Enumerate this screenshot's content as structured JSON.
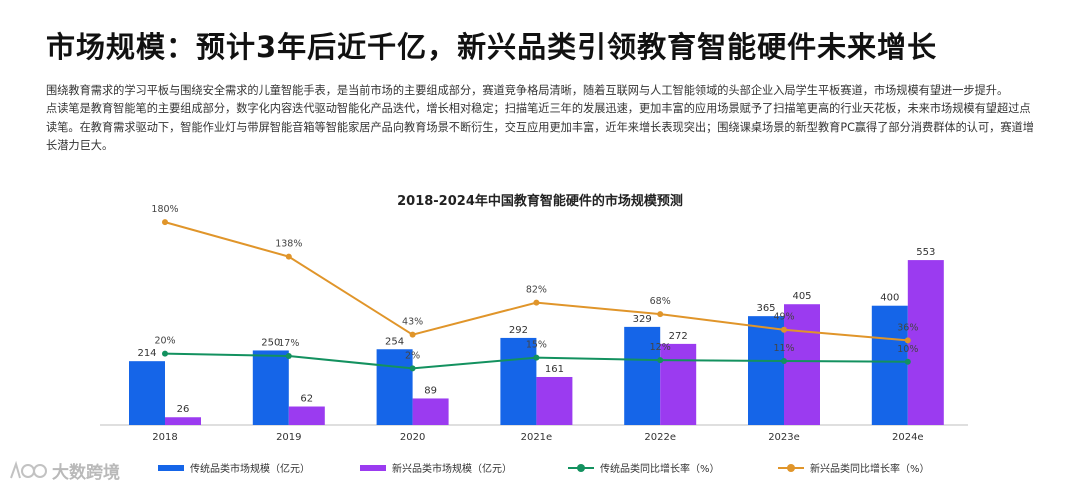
{
  "page": {
    "title": "市场规模：预计3年后近千亿，新兴品类引领教育智能硬件未来增长",
    "paragraphs": [
      "围绕教育需求的学习平板与围绕安全需求的儿童智能手表，是当前市场的主要组成部分，赛道竞争格局清晰，随着互联网与人工智能领域的头部企业入局学生平板赛道，市场规模有望进一步提升。",
      "点读笔是教育智能笔的主要组成部分，数字化内容迭代驱动智能化产品迭代，增长相对稳定；扫描笔近三年的发展迅速，更加丰富的应用场景赋予了扫描笔更高的行业天花板，未来市场规模有望超过点读笔。在教育需求驱动下，智能作业灯与带屏智能音箱等智能家居产品向教育场景不断衍生，交互应用更加丰富，近年来增长表现突出；围绕课桌场景的新型教育PC赢得了部分消费群体的认可，赛道增长潜力巨大。"
    ],
    "watermark": "大数跨境"
  },
  "chart_data": {
    "type": "bar+line",
    "title": "2018-2024年中国教育智能硬件的市场规模预测",
    "categories": [
      "2018",
      "2019",
      "2020",
      "2021e",
      "2022e",
      "2023e",
      "2024e"
    ],
    "series": [
      {
        "name": "传统品类市场规模（亿元）",
        "kind": "bar",
        "color": "#1565e8",
        "values": [
          214,
          250,
          254,
          292,
          329,
          365,
          400
        ],
        "labels": [
          "214",
          "250",
          "254",
          "292",
          "329",
          "365",
          "400"
        ]
      },
      {
        "name": "新兴品类市场规模（亿元）",
        "kind": "bar",
        "color": "#9b3bf0",
        "values": [
          26,
          62,
          89,
          161,
          272,
          405,
          553
        ],
        "labels": [
          "26",
          "62",
          "89",
          "161",
          "272",
          "405",
          "553"
        ]
      },
      {
        "name": "传统品类同比增长率（%）",
        "kind": "line",
        "color": "#13915f",
        "values": [
          20,
          17,
          2,
          15,
          12,
          11,
          10
        ],
        "labels": [
          "20%",
          "17%",
          "2%",
          "15%",
          "12%",
          "11%",
          "10%"
        ]
      },
      {
        "name": "新兴品类同比增长率（%）",
        "kind": "line",
        "color": "#e0952a",
        "values": [
          180,
          138,
          43,
          82,
          68,
          49,
          36
        ],
        "labels": [
          "180%",
          "138%",
          "43%",
          "82%",
          "68%",
          "49%",
          "36%"
        ]
      }
    ],
    "bar_ylim": [
      0,
      560
    ],
    "line_ylim": [
      0,
      185
    ],
    "legend_position": "bottom",
    "grid": false
  }
}
